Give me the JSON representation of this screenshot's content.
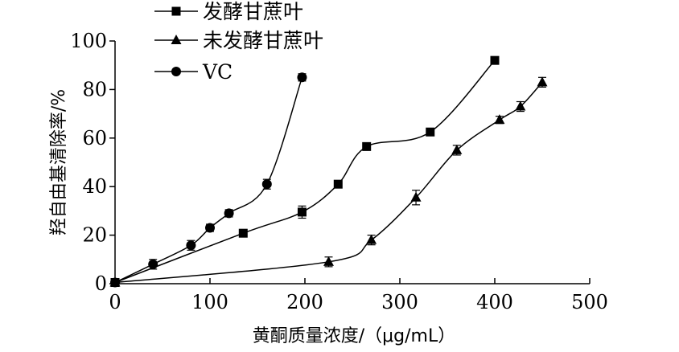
{
  "chart_data": {
    "type": "line",
    "xlabel": "黄酮质量浓度/（μg/mL）",
    "ylabel": "羟自由基清除率/%",
    "xlim": [
      0,
      500
    ],
    "ylim": [
      0,
      100
    ],
    "x_ticks": [
      "0",
      "100",
      "200",
      "300",
      "400",
      "500"
    ],
    "y_ticks": [
      "0",
      "20",
      "40",
      "60",
      "80",
      "100"
    ],
    "grid": false,
    "legend_position": "top-left",
    "series": [
      {
        "name": "发酵甘蔗叶",
        "marker": "square",
        "x": [
          0,
          135,
          197,
          235,
          265,
          332,
          400
        ],
        "y": [
          0.5,
          20.8,
          29.5,
          41,
          56.5,
          62.5,
          92
        ],
        "err": [
          0,
          0.8,
          2.5,
          1,
          1,
          1,
          1.2
        ]
      },
      {
        "name": "未发酵甘蔗叶",
        "marker": "triangle",
        "x": [
          0,
          225,
          270,
          317,
          360,
          405,
          427,
          450
        ],
        "y": [
          0.5,
          9,
          18,
          35.5,
          55,
          67.5,
          73,
          83
        ],
        "err": [
          0,
          2,
          2,
          3,
          2,
          1.5,
          2,
          2
        ]
      },
      {
        "name": "VC",
        "marker": "circle",
        "x": [
          0,
          40,
          80,
          100,
          120,
          160,
          197
        ],
        "y": [
          0.5,
          8,
          15.8,
          23,
          29,
          41,
          85
        ],
        "err": [
          0,
          2,
          2,
          1.5,
          1.5,
          2,
          1.5
        ]
      }
    ]
  }
}
